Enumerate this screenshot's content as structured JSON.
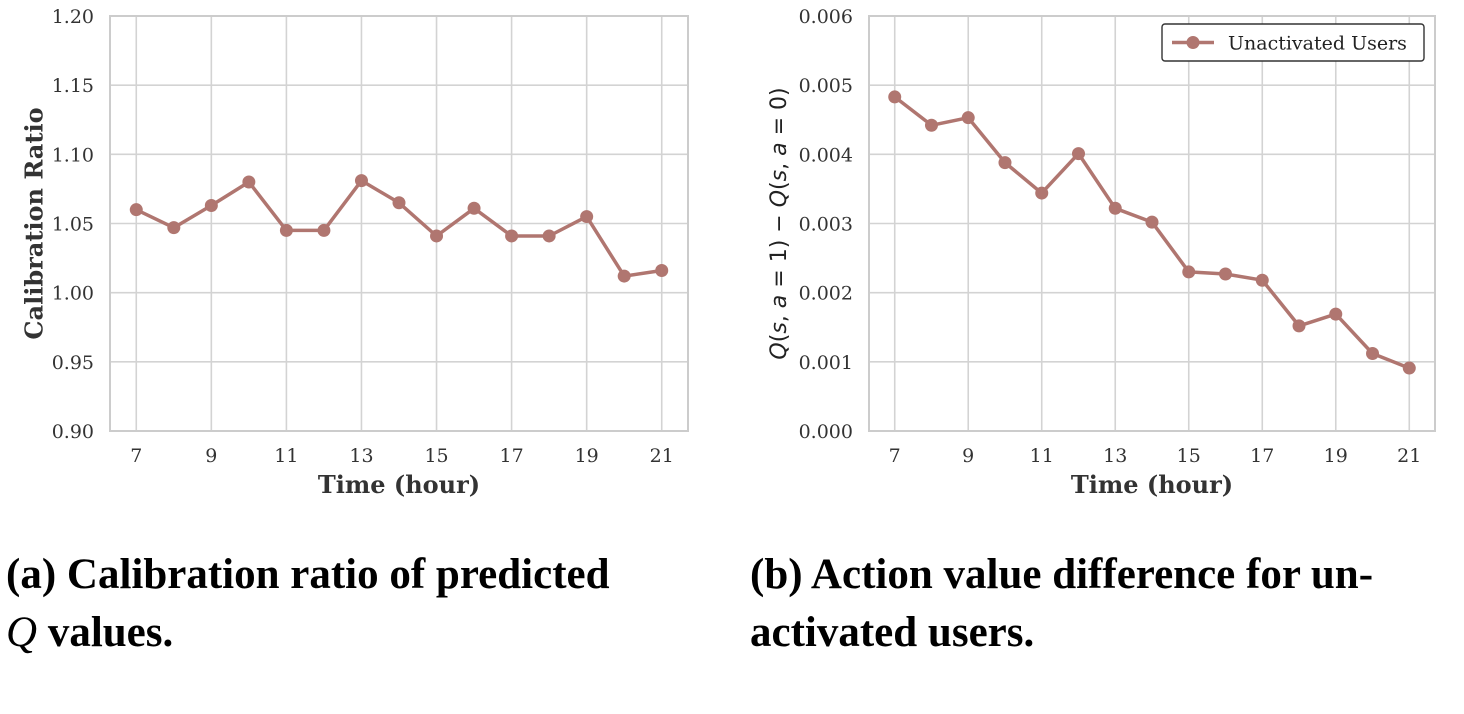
{
  "colors": {
    "series": "#b07670",
    "grid": "#d3d3d3",
    "axes_frame": "#cccccc"
  },
  "chart_data": [
    {
      "type": "line",
      "title": "",
      "xlabel": "Time (hour)",
      "ylabel": "Calibration Ratio",
      "x": [
        7,
        8,
        9,
        10,
        11,
        12,
        13,
        14,
        15,
        16,
        17,
        18,
        19,
        20,
        21
      ],
      "series": [
        {
          "values": [
            1.06,
            1.047,
            1.063,
            1.08,
            1.045,
            1.045,
            1.081,
            1.065,
            1.041,
            1.061,
            1.041,
            1.041,
            1.055,
            1.012,
            1.016
          ]
        }
      ],
      "xticks": [
        "7",
        "9",
        "11",
        "13",
        "15",
        "17",
        "19",
        "21"
      ],
      "yticks": [
        "0.90",
        "0.95",
        "1.00",
        "1.05",
        "1.10",
        "1.15",
        "1.20"
      ],
      "xlim": [
        6.3,
        21.7
      ],
      "ylim": [
        0.9,
        1.2
      ],
      "grid": true,
      "legend": null,
      "marker": "circle"
    },
    {
      "type": "line",
      "title": "",
      "xlabel": "Time (hour)",
      "ylabel_parts": [
        "Q",
        "(",
        "s",
        ", ",
        "a",
        " = 1) − ",
        "Q",
        "(",
        "s",
        ", ",
        "a",
        " = 0)"
      ],
      "x": [
        7,
        8,
        9,
        10,
        11,
        12,
        13,
        14,
        15,
        16,
        17,
        18,
        19,
        20,
        21
      ],
      "series": [
        {
          "name": "Unactivated Users",
          "values": [
            0.00483,
            0.00442,
            0.00453,
            0.00388,
            0.00344,
            0.00401,
            0.00322,
            0.00302,
            0.0023,
            0.00227,
            0.00218,
            0.00152,
            0.00169,
            0.00112,
            0.00091
          ]
        }
      ],
      "xticks": [
        "7",
        "9",
        "11",
        "13",
        "15",
        "17",
        "19",
        "21"
      ],
      "yticks": [
        "0.000",
        "0.001",
        "0.002",
        "0.003",
        "0.004",
        "0.005",
        "0.006"
      ],
      "xlim": [
        6.3,
        21.7
      ],
      "ylim": [
        0.0,
        0.006
      ],
      "grid": true,
      "legend": "top-right",
      "marker": "circle"
    }
  ],
  "captions": [
    {
      "line1": "(a) Calibration ratio of predicted",
      "line2_italic": "Q",
      "line2_rest": " values."
    },
    {
      "line1": "(b) Action value difference for un-",
      "line2": "activated users."
    }
  ]
}
